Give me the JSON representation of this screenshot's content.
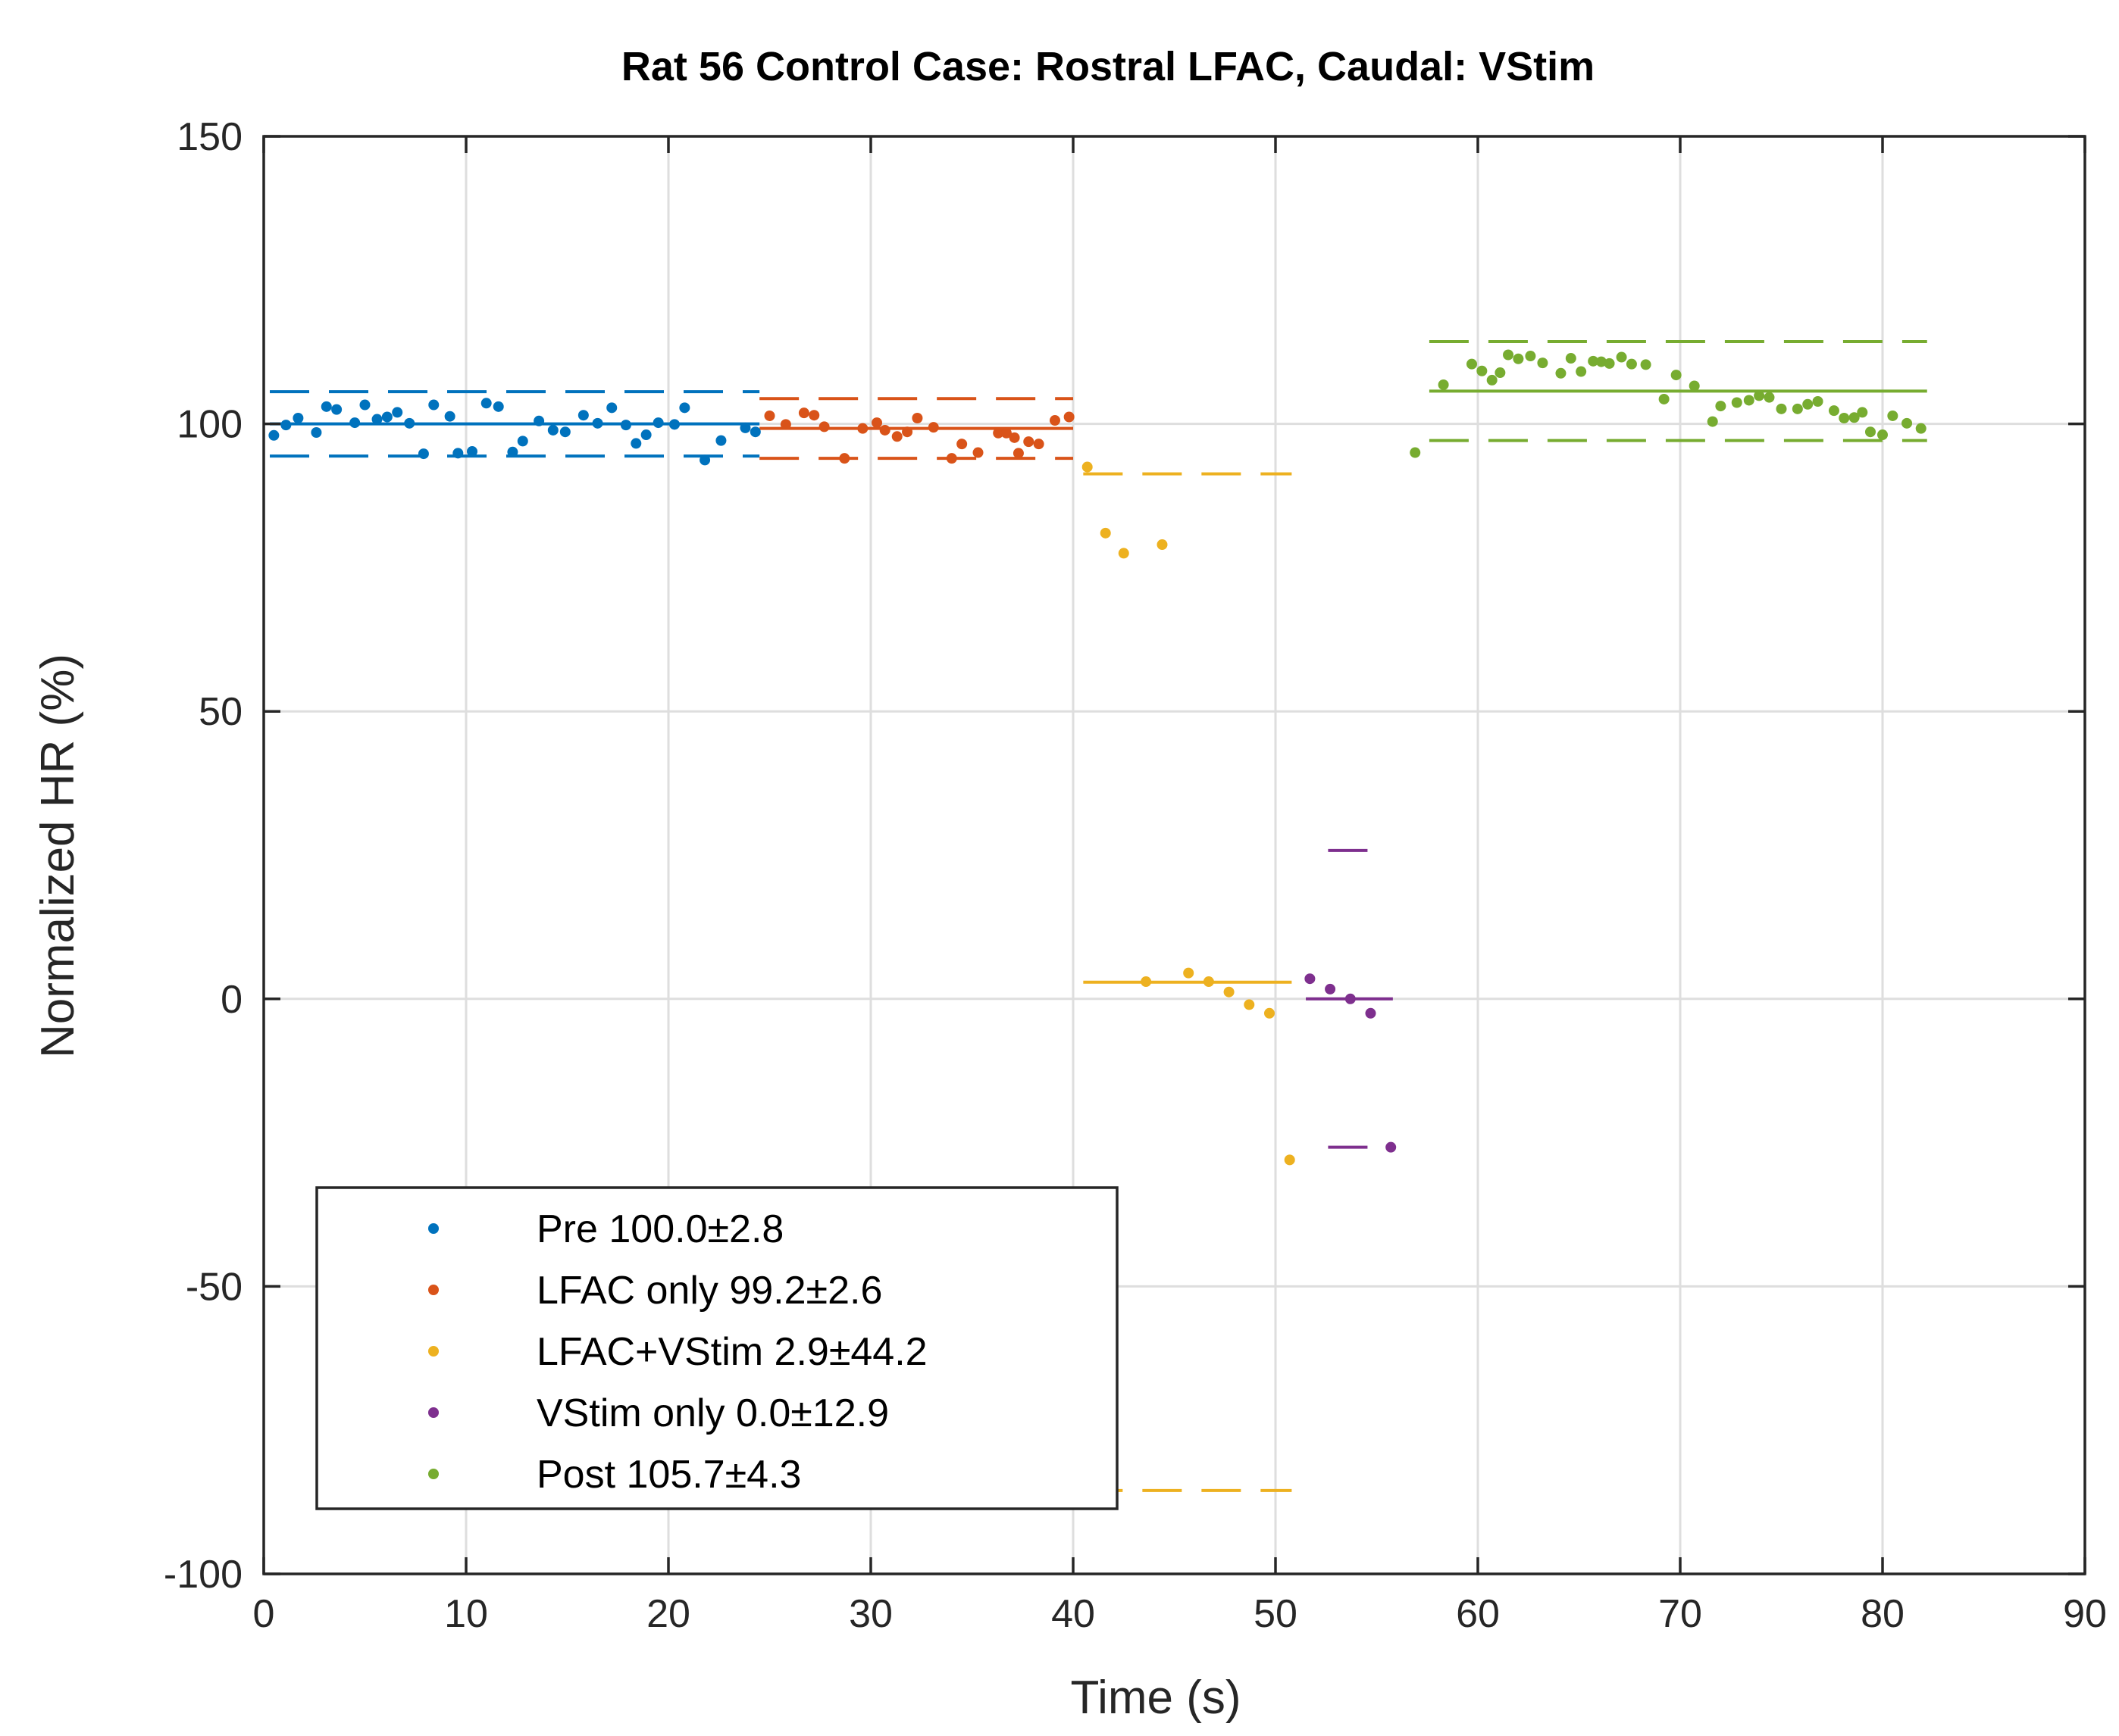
{
  "chart_data": {
    "type": "scatter",
    "title": "Rat 56 Control Case: Rostral LFAC,  Caudal: VStim",
    "xlabel": "Time (s)",
    "ylabel": "Normalized HR (%)",
    "xlim": [
      0,
      90
    ],
    "ylim": [
      -100,
      150
    ],
    "x_ticks": [
      0,
      10,
      20,
      30,
      40,
      50,
      60,
      70,
      80,
      90
    ],
    "y_ticks": [
      -100,
      -50,
      0,
      50,
      100,
      150
    ],
    "x_tick_labels": [
      "0",
      "10",
      "20",
      "30",
      "40",
      "50",
      "60",
      "70",
      "80",
      "90"
    ],
    "y_tick_labels": [
      "-100",
      "-50",
      "0",
      "50",
      "100",
      "150"
    ],
    "grid": true,
    "legend_position": "bottom-left",
    "series": [
      {
        "name": "Pre",
        "legend": "Pre 100.0±2.8",
        "color": "#0072BD",
        "mean": 100.0,
        "band": [
          94.4,
          105.6
        ],
        "span": [
          0.3,
          24.5
        ],
        "points": [
          [
            0.5,
            98.0
          ],
          [
            1.1,
            99.8
          ],
          [
            1.7,
            101.0
          ],
          [
            2.6,
            98.5
          ],
          [
            3.1,
            103.0
          ],
          [
            3.6,
            102.5
          ],
          [
            4.5,
            100.2
          ],
          [
            5.0,
            103.3
          ],
          [
            5.6,
            100.8
          ],
          [
            6.1,
            101.2
          ],
          [
            6.6,
            102.0
          ],
          [
            7.2,
            100.1
          ],
          [
            7.9,
            94.8
          ],
          [
            8.4,
            103.3
          ],
          [
            9.2,
            101.3
          ],
          [
            9.6,
            94.9
          ],
          [
            10.3,
            95.2
          ],
          [
            11.0,
            103.6
          ],
          [
            11.6,
            103.0
          ],
          [
            12.3,
            95.1
          ],
          [
            12.8,
            97.0
          ],
          [
            13.6,
            100.5
          ],
          [
            14.3,
            98.9
          ],
          [
            14.9,
            98.6
          ],
          [
            15.8,
            101.5
          ],
          [
            16.5,
            100.1
          ],
          [
            17.2,
            102.8
          ],
          [
            17.9,
            99.8
          ],
          [
            18.4,
            96.6
          ],
          [
            18.9,
            98.1
          ],
          [
            19.5,
            100.2
          ],
          [
            20.3,
            99.9
          ],
          [
            20.8,
            102.8
          ],
          [
            21.8,
            93.7
          ],
          [
            22.6,
            97.1
          ],
          [
            23.8,
            99.3
          ],
          [
            24.3,
            98.6
          ]
        ]
      },
      {
        "name": "LFAC only",
        "legend": "LFAC only 99.2±2.6",
        "color": "#D95319",
        "mean": 99.2,
        "band": [
          94.0,
          104.4
        ],
        "span": [
          24.5,
          40.0
        ],
        "points": [
          [
            25.0,
            101.4
          ],
          [
            25.8,
            99.9
          ],
          [
            26.7,
            101.9
          ],
          [
            27.2,
            101.5
          ],
          [
            27.7,
            99.5
          ],
          [
            28.7,
            94.0
          ],
          [
            29.6,
            99.2
          ],
          [
            30.3,
            100.2
          ],
          [
            30.7,
            98.9
          ],
          [
            31.3,
            97.8
          ],
          [
            31.8,
            98.6
          ],
          [
            32.3,
            101.0
          ],
          [
            33.1,
            99.4
          ],
          [
            34.0,
            94.0
          ],
          [
            34.5,
            96.5
          ],
          [
            35.3,
            95.0
          ],
          [
            36.3,
            98.4
          ],
          [
            36.7,
            98.4
          ],
          [
            37.1,
            97.6
          ],
          [
            37.3,
            94.9
          ],
          [
            37.8,
            96.9
          ],
          [
            38.3,
            96.5
          ],
          [
            39.1,
            100.6
          ],
          [
            39.8,
            101.2
          ]
        ]
      },
      {
        "name": "LFAC+VStim",
        "legend": "LFAC+VStim 2.9±44.2",
        "color": "#EDB120",
        "mean": 2.9,
        "band": [
          -85.5,
          91.3
        ],
        "span": [
          40.5,
          50.8
        ],
        "points": [
          [
            40.7,
            92.5
          ],
          [
            41.6,
            81.0
          ],
          [
            42.5,
            77.5
          ],
          [
            44.4,
            79.0
          ],
          [
            43.6,
            3.0
          ],
          [
            45.7,
            4.5
          ],
          [
            46.7,
            3.0
          ],
          [
            47.7,
            1.2
          ],
          [
            48.7,
            -1.0
          ],
          [
            49.7,
            -2.5
          ],
          [
            50.7,
            -28.0
          ]
        ]
      },
      {
        "name": "VStim only",
        "legend": "VStim only 0.0±12.9",
        "color": "#7E2F8E",
        "mean": 0.0,
        "band": [
          -25.8,
          25.8
        ],
        "span": [
          51.5,
          55.8
        ],
        "band_span": [
          52.6,
          54.7
        ],
        "points": [
          [
            51.7,
            3.5
          ],
          [
            52.7,
            1.7
          ],
          [
            53.7,
            0.0
          ],
          [
            54.7,
            -2.5
          ],
          [
            55.7,
            -25.8
          ]
        ]
      },
      {
        "name": "Post",
        "legend": "Post 105.7±4.3",
        "color": "#77AC30",
        "mean": 105.7,
        "band": [
          97.1,
          114.3
        ],
        "span": [
          57.6,
          82.2
        ],
        "points": [
          [
            56.9,
            95.0
          ],
          [
            58.3,
            106.8
          ],
          [
            59.7,
            110.4
          ],
          [
            60.2,
            109.2
          ],
          [
            60.7,
            107.6
          ],
          [
            61.1,
            108.9
          ],
          [
            61.5,
            112.0
          ],
          [
            62.0,
            111.3
          ],
          [
            62.6,
            111.8
          ],
          [
            63.2,
            110.6
          ],
          [
            64.1,
            108.8
          ],
          [
            64.6,
            111.4
          ],
          [
            65.1,
            109.1
          ],
          [
            65.7,
            110.9
          ],
          [
            66.1,
            110.8
          ],
          [
            66.5,
            110.5
          ],
          [
            67.1,
            111.6
          ],
          [
            67.6,
            110.4
          ],
          [
            68.3,
            110.3
          ],
          [
            69.2,
            104.3
          ],
          [
            69.8,
            108.5
          ],
          [
            70.7,
            106.6
          ],
          [
            71.6,
            100.4
          ],
          [
            72.0,
            103.1
          ],
          [
            72.8,
            103.7
          ],
          [
            73.4,
            104.1
          ],
          [
            73.9,
            104.9
          ],
          [
            74.4,
            104.6
          ],
          [
            75.0,
            102.6
          ],
          [
            75.8,
            102.6
          ],
          [
            76.3,
            103.4
          ],
          [
            76.8,
            103.9
          ],
          [
            77.6,
            102.3
          ],
          [
            78.1,
            101.0
          ],
          [
            78.6,
            101.1
          ],
          [
            79.0,
            102.0
          ],
          [
            79.4,
            98.6
          ],
          [
            80.0,
            98.1
          ],
          [
            80.5,
            101.4
          ],
          [
            81.2,
            100.1
          ],
          [
            81.9,
            99.2
          ]
        ]
      }
    ]
  }
}
